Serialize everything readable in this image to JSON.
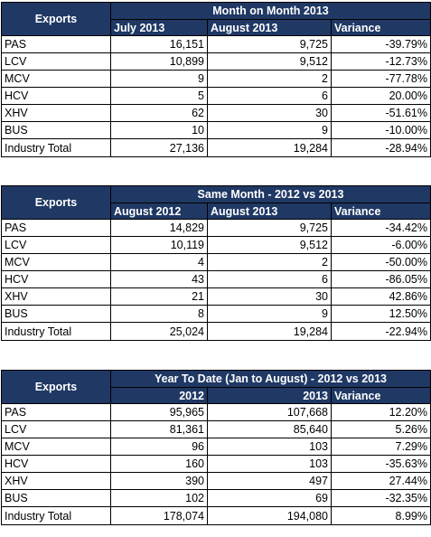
{
  "tables": [
    {
      "row_header": "Exports",
      "group_title": "Month on Month 2013",
      "col1": "July 2013",
      "col2": "August 2013",
      "col3": "Variance",
      "rows": [
        {
          "label": "PAS",
          "a": "16,151",
          "b": "9,725",
          "v": "-39.79%"
        },
        {
          "label": "LCV",
          "a": "10,899",
          "b": "9,512",
          "v": "-12.73%"
        },
        {
          "label": "MCV",
          "a": "9",
          "b": "2",
          "v": "-77.78%"
        },
        {
          "label": "HCV",
          "a": "5",
          "b": "6",
          "v": "20.00%"
        },
        {
          "label": "XHV",
          "a": "62",
          "b": "30",
          "v": "-51.61%"
        },
        {
          "label": "BUS",
          "a": "10",
          "b": "9",
          "v": "-10.00%"
        },
        {
          "label": "Industry Total",
          "a": "27,136",
          "b": "19,284",
          "v": "-28.94%"
        }
      ]
    },
    {
      "row_header": "Exports",
      "group_title": "Same Month - 2012 vs 2013",
      "col1": "August 2012",
      "col2": "August 2013",
      "col3": "Variance",
      "rows": [
        {
          "label": "PAS",
          "a": "14,829",
          "b": "9,725",
          "v": "-34.42%"
        },
        {
          "label": "LCV",
          "a": "10,119",
          "b": "9,512",
          "v": "-6.00%"
        },
        {
          "label": "MCV",
          "a": "4",
          "b": "2",
          "v": "-50.00%"
        },
        {
          "label": "HCV",
          "a": "43",
          "b": "6",
          "v": "-86.05%"
        },
        {
          "label": "XHV",
          "a": "21",
          "b": "30",
          "v": "42.86%"
        },
        {
          "label": "BUS",
          "a": "8",
          "b": "9",
          "v": "12.50%"
        },
        {
          "label": "Industry Total",
          "a": "25,024",
          "b": "19,284",
          "v": "-22.94%"
        }
      ]
    },
    {
      "row_header": "Exports",
      "group_title": "Year To Date (Jan to August) - 2012 vs 2013",
      "col1": "2012",
      "col2": "2013",
      "col3": "Variance",
      "rows": [
        {
          "label": "PAS",
          "a": "95,965",
          "b": "107,668",
          "v": "12.20%"
        },
        {
          "label": "LCV",
          "a": "81,361",
          "b": "85,640",
          "v": "5.26%"
        },
        {
          "label": "MCV",
          "a": "96",
          "b": "103",
          "v": "7.29%"
        },
        {
          "label": "HCV",
          "a": "160",
          "b": "103",
          "v": "-35.63%"
        },
        {
          "label": "XHV",
          "a": "390",
          "b": "497",
          "v": "27.44%"
        },
        {
          "label": "BUS",
          "a": "102",
          "b": "69",
          "v": "-32.35%"
        },
        {
          "label": "Industry Total",
          "a": "178,074",
          "b": "194,080",
          "v": "8.99%"
        }
      ]
    }
  ],
  "colors": {
    "header_bg": "#1f3864",
    "header_text": "#ffffff",
    "border": "#000000"
  }
}
